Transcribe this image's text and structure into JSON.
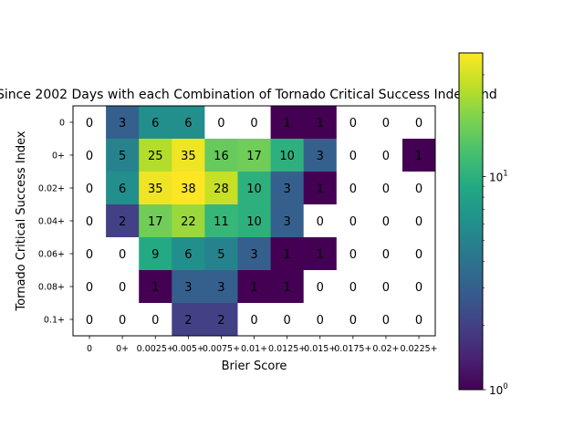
{
  "chart_data": {
    "type": "heatmap",
    "title": "Since 2002 Days with each Combination of Tornado Critical Success Index and",
    "xlabel": "Brier Score",
    "ylabel": "Tornado Critical Success Index",
    "x_categories": [
      "0",
      "0+",
      "0.0025+",
      "0.005+",
      "0.0075+",
      "0.01+",
      "0.0125+",
      "0.015+",
      "0.0175+",
      "0.02+",
      "0.0225+"
    ],
    "y_categories": [
      "0",
      "0+",
      "0.02+",
      "0.04+",
      "0.06+",
      "0.08+",
      "0.1+"
    ],
    "values": [
      [
        0,
        3,
        6,
        6,
        0,
        0,
        1,
        1,
        0,
        0,
        0
      ],
      [
        0,
        5,
        25,
        35,
        16,
        17,
        10,
        3,
        0,
        0,
        1
      ],
      [
        0,
        6,
        35,
        38,
        28,
        10,
        3,
        1,
        0,
        0,
        0
      ],
      [
        0,
        2,
        17,
        22,
        11,
        10,
        3,
        0,
        0,
        0,
        0
      ],
      [
        0,
        0,
        9,
        6,
        5,
        3,
        1,
        1,
        0,
        0,
        0
      ],
      [
        0,
        0,
        1,
        3,
        3,
        1,
        1,
        0,
        0,
        0,
        0
      ],
      [
        0,
        0,
        0,
        2,
        2,
        0,
        0,
        0,
        0,
        0,
        0
      ]
    ],
    "colormap": "viridis",
    "color_scale": "log",
    "color_range": [
      1,
      38
    ],
    "colorbar_ticks": [
      {
        "value": 1,
        "label": "10",
        "exponent": "0"
      },
      {
        "value": 10,
        "label": "10",
        "exponent": "1"
      }
    ],
    "zero_cell_color": "#ffffff",
    "grid": false
  }
}
